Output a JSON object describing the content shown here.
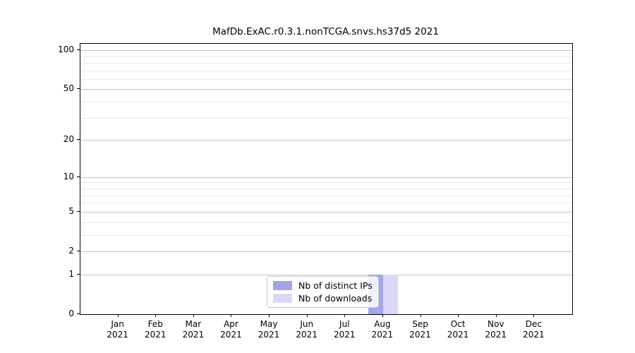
{
  "chart_data": {
    "type": "bar",
    "title": "MafDb.ExAC.r0.3.1.nonTCGA.snvs.hs37d5 2021",
    "categories": [
      "Jan",
      "Feb",
      "Mar",
      "Apr",
      "May",
      "Jun",
      "Jul",
      "Aug",
      "Sep",
      "Oct",
      "Nov",
      "Dec"
    ],
    "x_year_label": "2021",
    "series": [
      {
        "name": "Nb of distinct IPs",
        "color": "#a4a4ee",
        "values": [
          0,
          0,
          0,
          0,
          0,
          0,
          0,
          1,
          0,
          0,
          0,
          0
        ]
      },
      {
        "name": "Nb of downloads",
        "color": "#dadaf8",
        "values": [
          0,
          0,
          0,
          0,
          0,
          0,
          0,
          1,
          0,
          0,
          0,
          0
        ]
      }
    ],
    "xlabel": "",
    "ylabel": "",
    "y_scale": "log1p",
    "ylim": [
      0,
      112
    ],
    "y_major_ticks": [
      0,
      1,
      2,
      5,
      10,
      20,
      50,
      100
    ],
    "y_minor_gridlines": [
      3,
      4,
      6,
      7,
      8,
      9,
      30,
      40,
      60,
      70,
      80,
      90
    ],
    "grid": "horizontal",
    "legend_position": "lower-center"
  },
  "colors": {
    "axis_spine": "#000000",
    "major_grid": "#c3c3c3",
    "minor_grid": "#e9e9e9",
    "background": "#ffffff",
    "legend_border": "#cccccc"
  }
}
